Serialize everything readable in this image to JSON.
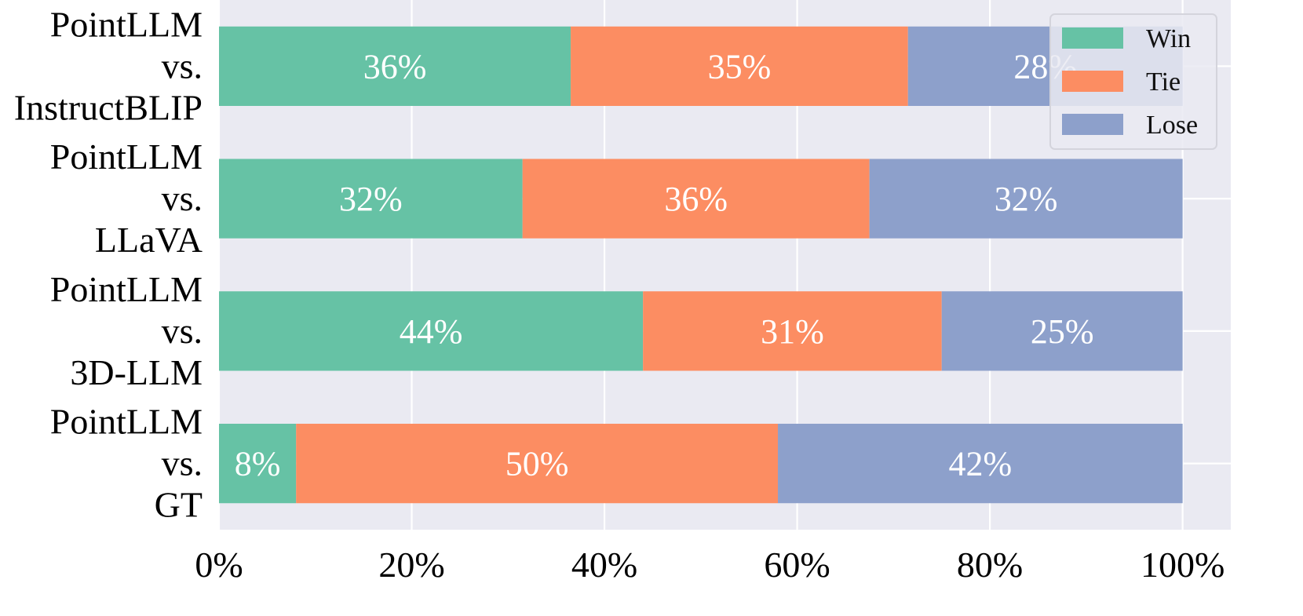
{
  "chart_data": {
    "type": "bar",
    "orientation": "horizontal",
    "stacked": true,
    "categories": [
      [
        "PointLLM",
        "vs.",
        "InstructBLIP"
      ],
      [
        "PointLLM",
        "vs.",
        "LLaVA"
      ],
      [
        "PointLLM",
        "vs.",
        "3D-LLM"
      ],
      [
        "PointLLM",
        "vs.",
        "GT"
      ]
    ],
    "series": [
      {
        "name": "Win",
        "color": "#66c2a5",
        "values": [
          36.5,
          31.5,
          44,
          8
        ],
        "labels": [
          "36%",
          "32%",
          "44%",
          "8%"
        ]
      },
      {
        "name": "Tie",
        "color": "#fc8d62",
        "values": [
          35,
          36,
          31,
          50
        ],
        "labels": [
          "35%",
          "36%",
          "31%",
          "50%"
        ]
      },
      {
        "name": "Lose",
        "color": "#8da0cb",
        "values": [
          28.5,
          32.5,
          25,
          42
        ],
        "labels": [
          "28%",
          "32%",
          "25%",
          "42%"
        ]
      }
    ],
    "xlim": [
      0,
      105
    ],
    "xticks": [
      0,
      20,
      40,
      60,
      80,
      100
    ],
    "xtick_labels": [
      "0%",
      "20%",
      "40%",
      "60%",
      "80%",
      "100%"
    ],
    "grid": true,
    "legend_position": "top-right",
    "background": "#eaeaf2"
  }
}
